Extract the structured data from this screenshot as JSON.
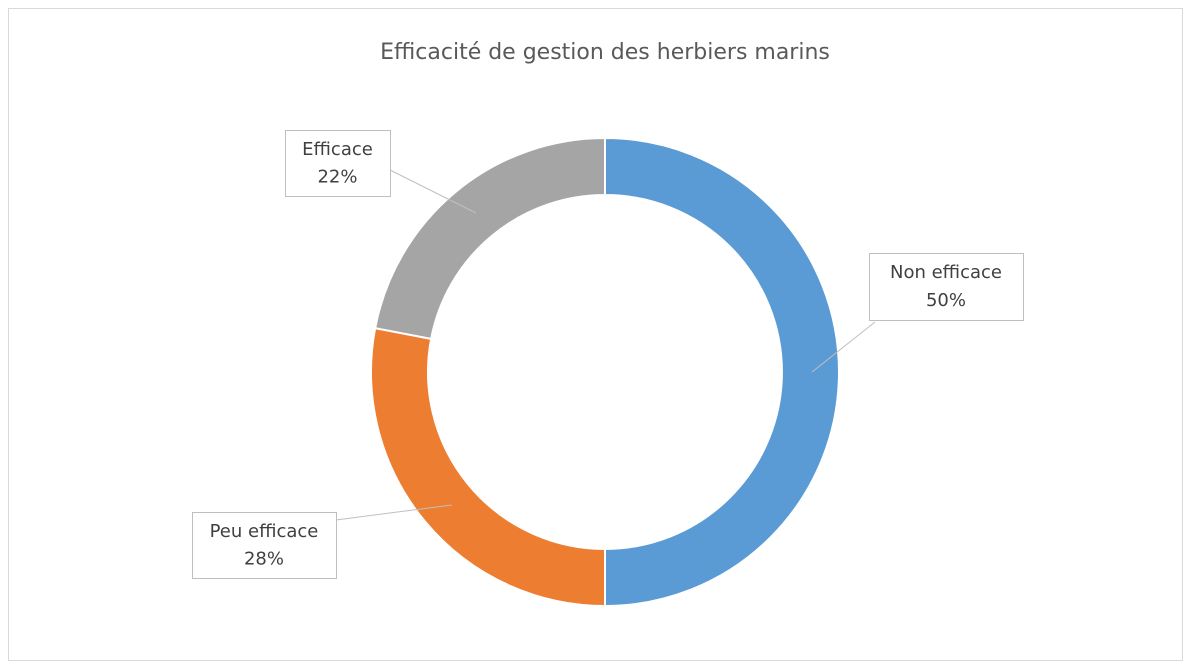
{
  "chart_data": {
    "type": "donut",
    "title": "Efficacité de gestion des herbiers marins",
    "categories": [
      "Non efficace",
      "Peu efficace",
      "Efficace"
    ],
    "values": [
      50,
      28,
      22
    ],
    "value_labels": [
      "50%",
      "28%",
      "22%"
    ],
    "colors": [
      "#5b9bd5",
      "#ed7d31",
      "#a5a5a5"
    ]
  }
}
